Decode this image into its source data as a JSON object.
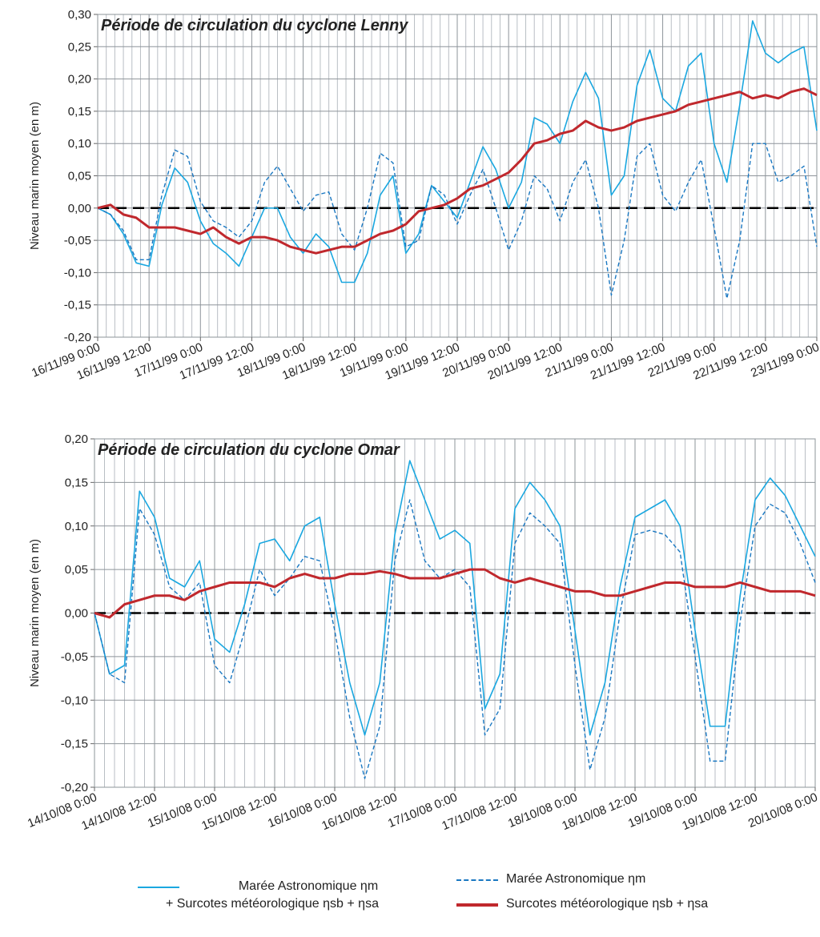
{
  "chart_data": [
    {
      "type": "line",
      "title": "Période de circulation du cyclone Lenny",
      "y_label": "Niveau marin moyen (en m)",
      "grid": true,
      "x": [
        0,
        3,
        6,
        9,
        12,
        15,
        18,
        21,
        24,
        27,
        30,
        33,
        36,
        39,
        42,
        45,
        48,
        51,
        54,
        57,
        60,
        63,
        66,
        69,
        72,
        75,
        78,
        81,
        84,
        87,
        90,
        93,
        96,
        99,
        102,
        105,
        108,
        111,
        114,
        117,
        120,
        123,
        126,
        129,
        132,
        135,
        138,
        141,
        144,
        147,
        150,
        153,
        156,
        159,
        162,
        165,
        168
      ],
      "xlim": [
        0,
        168
      ],
      "xticks": [
        {
          "value": 0,
          "label": "16/11/99 0:00"
        },
        {
          "value": 12,
          "label": "16/11/99 12:00"
        },
        {
          "value": 24,
          "label": "17/11/99 0:00"
        },
        {
          "value": 36,
          "label": "17/11/99 12:00"
        },
        {
          "value": 48,
          "label": "18/11/99 0:00"
        },
        {
          "value": 60,
          "label": "18/11/99 12:00"
        },
        {
          "value": 72,
          "label": "19/11/99 0:00"
        },
        {
          "value": 84,
          "label": "19/11/99 12:00"
        },
        {
          "value": 96,
          "label": "20/11/99 0:00"
        },
        {
          "value": 108,
          "label": "20/11/99 12:00"
        },
        {
          "value": 120,
          "label": "21/11/99 0:00"
        },
        {
          "value": 132,
          "label": "21/11/99 12:00"
        },
        {
          "value": 144,
          "label": "22/11/99 0:00"
        },
        {
          "value": 156,
          "label": "22/11/99 12:00"
        },
        {
          "value": 168,
          "label": "23/11/99 0:00"
        }
      ],
      "ylim": [
        -0.2,
        0.3
      ],
      "yticks": [
        {
          "value": -0.2,
          "label": "-0,20"
        },
        {
          "value": -0.15,
          "label": "-0,15"
        },
        {
          "value": -0.1,
          "label": "-0,10"
        },
        {
          "value": -0.05,
          "label": "-0,05"
        },
        {
          "value": 0,
          "label": "0,00"
        },
        {
          "value": 0.05,
          "label": "0,05"
        },
        {
          "value": 0.1,
          "label": "0,10"
        },
        {
          "value": 0.15,
          "label": "0,15"
        },
        {
          "value": 0.2,
          "label": "0,20"
        },
        {
          "value": 0.25,
          "label": "0,25"
        },
        {
          "value": 0.3,
          "label": "0,30"
        }
      ],
      "series": [
        {
          "name": "Marée Astronomique ηm\n+ Surcotes météorologique ηsb + ηsa",
          "color": "#1aa7e0",
          "dash": "solid",
          "values": [
            0.0,
            -0.01,
            -0.04,
            -0.085,
            -0.09,
            0.005,
            0.062,
            0.04,
            -0.02,
            -0.055,
            -0.07,
            -0.09,
            -0.045,
            0.0,
            0.0,
            -0.045,
            -0.07,
            -0.04,
            -0.06,
            -0.115,
            -0.115,
            -0.07,
            0.02,
            0.05,
            -0.07,
            -0.04,
            0.035,
            0.01,
            -0.015,
            0.04,
            0.095,
            0.06,
            0.0,
            0.04,
            0.14,
            0.13,
            0.1,
            0.165,
            0.21,
            0.17,
            0.02,
            0.05,
            0.19,
            0.245,
            0.17,
            0.15,
            0.22,
            0.24,
            0.1,
            0.04,
            0.16,
            0.29,
            0.24,
            0.225,
            0.24,
            0.25,
            0.12
          ]
        },
        {
          "name": "Marée Astronomique ηm",
          "color": "#1a78c2",
          "dash": "dashed",
          "values": [
            0.0,
            -0.01,
            -0.035,
            -0.08,
            -0.08,
            0.02,
            0.09,
            0.08,
            0.01,
            -0.02,
            -0.03,
            -0.045,
            -0.02,
            0.04,
            0.065,
            0.03,
            -0.005,
            0.02,
            0.025,
            -0.04,
            -0.065,
            0.0,
            0.085,
            0.07,
            -0.06,
            -0.05,
            0.035,
            0.02,
            -0.025,
            0.02,
            0.06,
            0.0,
            -0.065,
            -0.02,
            0.05,
            0.03,
            -0.02,
            0.04,
            0.075,
            0.0,
            -0.135,
            -0.05,
            0.08,
            0.1,
            0.02,
            -0.005,
            0.04,
            0.075,
            -0.03,
            -0.14,
            -0.05,
            0.1,
            0.1,
            0.04,
            0.05,
            0.065,
            -0.06
          ]
        },
        {
          "name": "Surcotes météorologique ηsb + ηsa",
          "color": "#c0282d",
          "dash": "thick",
          "values": [
            0.0,
            0.005,
            -0.01,
            -0.015,
            -0.03,
            -0.03,
            -0.03,
            -0.035,
            -0.04,
            -0.03,
            -0.045,
            -0.055,
            -0.045,
            -0.045,
            -0.05,
            -0.06,
            -0.065,
            -0.07,
            -0.065,
            -0.06,
            -0.06,
            -0.05,
            -0.04,
            -0.035,
            -0.025,
            -0.005,
            0.0,
            0.005,
            0.015,
            0.03,
            0.035,
            0.045,
            0.055,
            0.075,
            0.1,
            0.105,
            0.115,
            0.12,
            0.135,
            0.125,
            0.12,
            0.125,
            0.135,
            0.14,
            0.145,
            0.15,
            0.16,
            0.165,
            0.17,
            0.175,
            0.18,
            0.17,
            0.175,
            0.17,
            0.18,
            0.185,
            0.175
          ]
        }
      ]
    },
    {
      "type": "line",
      "title": "Période de circulation du cyclone Omar",
      "y_label": "Niveau marin moyen (en m)",
      "grid": true,
      "x": [
        0,
        3,
        6,
        9,
        12,
        15,
        18,
        21,
        24,
        27,
        30,
        33,
        36,
        39,
        42,
        45,
        48,
        51,
        54,
        57,
        60,
        63,
        66,
        69,
        72,
        75,
        78,
        81,
        84,
        87,
        90,
        93,
        96,
        99,
        102,
        105,
        108,
        111,
        114,
        117,
        120,
        123,
        126,
        129,
        132,
        135,
        138,
        141,
        144
      ],
      "xlim": [
        0,
        144
      ],
      "xticks": [
        {
          "value": 0,
          "label": "14/10/08 0:00"
        },
        {
          "value": 12,
          "label": "14/10/08 12:00"
        },
        {
          "value": 24,
          "label": "15/10/08 0:00"
        },
        {
          "value": 36,
          "label": "15/10/08 12:00"
        },
        {
          "value": 48,
          "label": "16/10/08 0:00"
        },
        {
          "value": 60,
          "label": "16/10/08 12:00"
        },
        {
          "value": 72,
          "label": "17/10/08 0:00"
        },
        {
          "value": 84,
          "label": "17/10/08 12:00"
        },
        {
          "value": 96,
          "label": "18/10/08 0:00"
        },
        {
          "value": 108,
          "label": "18/10/08 12:00"
        },
        {
          "value": 120,
          "label": "19/10/08 0:00"
        },
        {
          "value": 132,
          "label": "19/10/08 12:00"
        },
        {
          "value": 144,
          "label": "20/10/08 0:00"
        }
      ],
      "ylim": [
        -0.2,
        0.2
      ],
      "yticks": [
        {
          "value": -0.2,
          "label": "-0,20"
        },
        {
          "value": -0.15,
          "label": "-0,15"
        },
        {
          "value": -0.1,
          "label": "-0,10"
        },
        {
          "value": -0.05,
          "label": "-0,05"
        },
        {
          "value": 0,
          "label": "0,00"
        },
        {
          "value": 0.05,
          "label": "0,05"
        },
        {
          "value": 0.1,
          "label": "0,10"
        },
        {
          "value": 0.15,
          "label": "0,15"
        },
        {
          "value": 0.2,
          "label": "0,20"
        }
      ],
      "series": [
        {
          "color": "#1aa7e0",
          "dash": "solid",
          "values": [
            0.0,
            -0.07,
            -0.06,
            0.14,
            0.11,
            0.04,
            0.03,
            0.06,
            -0.03,
            -0.045,
            0.01,
            0.08,
            0.085,
            0.06,
            0.1,
            0.11,
            0.01,
            -0.08,
            -0.14,
            -0.08,
            0.09,
            0.175,
            0.13,
            0.085,
            0.095,
            0.08,
            -0.11,
            -0.07,
            0.12,
            0.15,
            0.13,
            0.1,
            -0.02,
            -0.14,
            -0.08,
            0.03,
            0.11,
            0.12,
            0.13,
            0.1,
            -0.02,
            -0.13,
            -0.13,
            0.02,
            0.13,
            0.155,
            0.135,
            0.1,
            0.065
          ]
        },
        {
          "color": "#1a78c2",
          "dash": "dashed",
          "values": [
            0.0,
            -0.07,
            -0.08,
            0.12,
            0.09,
            0.03,
            0.015,
            0.035,
            -0.06,
            -0.08,
            -0.02,
            0.05,
            0.02,
            0.04,
            0.065,
            0.06,
            -0.02,
            -0.12,
            -0.19,
            -0.13,
            0.06,
            0.13,
            0.06,
            0.04,
            0.05,
            0.03,
            -0.14,
            -0.11,
            0.08,
            0.115,
            0.1,
            0.08,
            -0.06,
            -0.18,
            -0.12,
            0.0,
            0.09,
            0.095,
            0.09,
            0.07,
            -0.05,
            -0.17,
            -0.17,
            -0.01,
            0.1,
            0.125,
            0.115,
            0.08,
            0.035
          ]
        },
        {
          "color": "#c0282d",
          "dash": "thick",
          "values": [
            0.0,
            -0.005,
            0.01,
            0.015,
            0.02,
            0.02,
            0.015,
            0.025,
            0.03,
            0.035,
            0.035,
            0.035,
            0.03,
            0.04,
            0.045,
            0.04,
            0.04,
            0.045,
            0.045,
            0.048,
            0.045,
            0.04,
            0.04,
            0.04,
            0.045,
            0.05,
            0.05,
            0.04,
            0.035,
            0.04,
            0.035,
            0.03,
            0.025,
            0.025,
            0.02,
            0.02,
            0.025,
            0.03,
            0.035,
            0.035,
            0.03,
            0.03,
            0.03,
            0.035,
            0.03,
            0.025,
            0.025,
            0.025,
            0.02
          ]
        }
      ]
    }
  ]
}
